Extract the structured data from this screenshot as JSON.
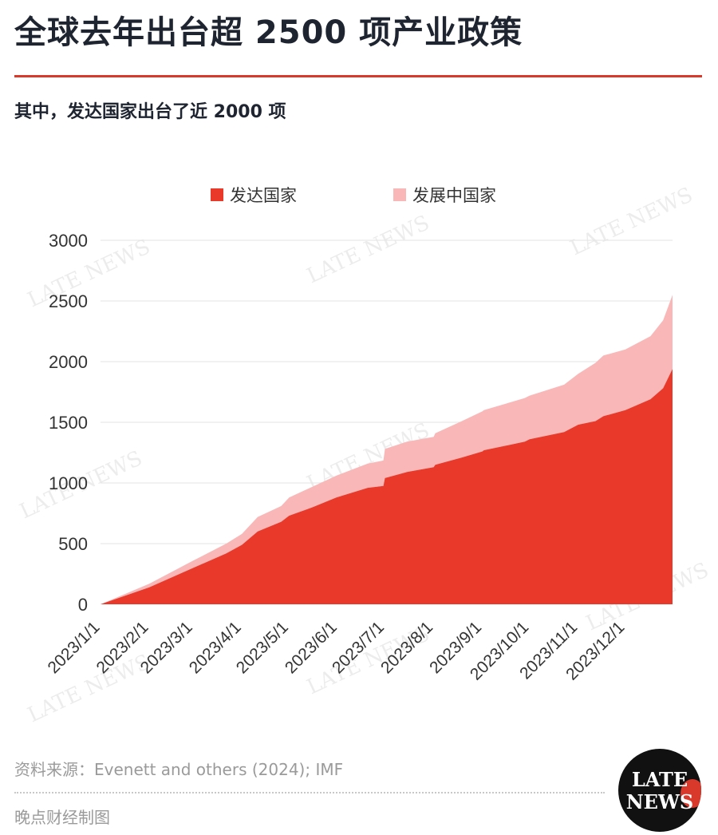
{
  "header": {
    "title": "全球去年出台超 2500 项产业政策",
    "subtitle": "其中，发达国家出台了近 2000 项"
  },
  "footer": {
    "source": "资料来源：Evenett and others (2024); IMF",
    "maker": "晚点财经制图",
    "logo_line1": "LATE",
    "logo_line2": "NEWS"
  },
  "watermark_text": "LATE NEWS",
  "colors": {
    "developed": "#e8392b",
    "developing": "#f9b7b7",
    "grid": "#e3e3e3",
    "axis_text": "#333333"
  },
  "chart_data": {
    "type": "area",
    "stacked": true,
    "title": "",
    "xlabel": "",
    "ylabel": "",
    "ylim": [
      0,
      3000
    ],
    "yticks": [
      0,
      500,
      1000,
      1500,
      2000,
      2500,
      3000
    ],
    "xticks": [
      "2023/1/1",
      "2023/2/1",
      "2023/3/1",
      "2023/4/1",
      "2023/5/1",
      "2023/6/1",
      "2023/7/1",
      "2023/8/1",
      "2023/9/1",
      "2023/10/1",
      "2023/11/1",
      "2023/12/1"
    ],
    "legend_position": "top",
    "x_days": [
      0,
      31,
      59,
      80,
      90,
      100,
      115,
      120,
      135,
      150,
      170,
      180,
      181,
      195,
      212,
      213,
      230,
      243,
      244,
      270,
      273,
      295,
      304,
      315,
      320,
      334,
      350,
      358,
      364
    ],
    "series": [
      {
        "name": "发达国家",
        "values": [
          0,
          140,
          300,
          420,
          490,
          600,
          680,
          730,
          800,
          880,
          960,
          975,
          1040,
          1090,
          1130,
          1150,
          1210,
          1260,
          1270,
          1340,
          1360,
          1420,
          1480,
          1510,
          1550,
          1600,
          1690,
          1780,
          1940
        ]
      },
      {
        "name": "发展中国家",
        "values": [
          0,
          30,
          60,
          80,
          90,
          120,
          130,
          150,
          170,
          180,
          200,
          210,
          240,
          250,
          250,
          260,
          300,
          330,
          330,
          360,
          360,
          390,
          420,
          480,
          500,
          500,
          520,
          560,
          610
        ]
      }
    ]
  }
}
